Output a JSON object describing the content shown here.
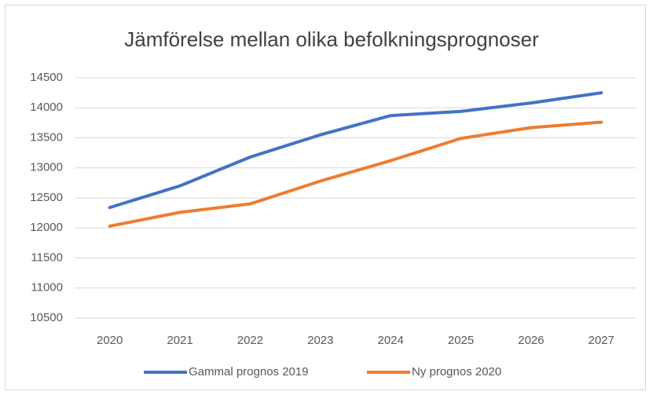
{
  "chart_data": {
    "type": "line",
    "title": "Jämförelse mellan olika befolkningsprognoser",
    "categories": [
      "2020",
      "2021",
      "2022",
      "2023",
      "2024",
      "2025",
      "2026",
      "2027"
    ],
    "series": [
      {
        "name": "Gammal prognos 2019",
        "color": "#4472c4",
        "values": [
          12340,
          12700,
          13180,
          13550,
          13870,
          13940,
          14080,
          14250
        ]
      },
      {
        "name": "Ny prognos 2020",
        "color": "#ed7d31",
        "values": [
          12030,
          12260,
          12400,
          12780,
          13120,
          13490,
          13670,
          13760
        ]
      }
    ],
    "ylim": [
      10500,
      14500
    ],
    "yticks": [
      10500,
      11000,
      11500,
      12000,
      12500,
      13000,
      13500,
      14000,
      14500
    ],
    "grid": true,
    "legend": "bottom"
  }
}
